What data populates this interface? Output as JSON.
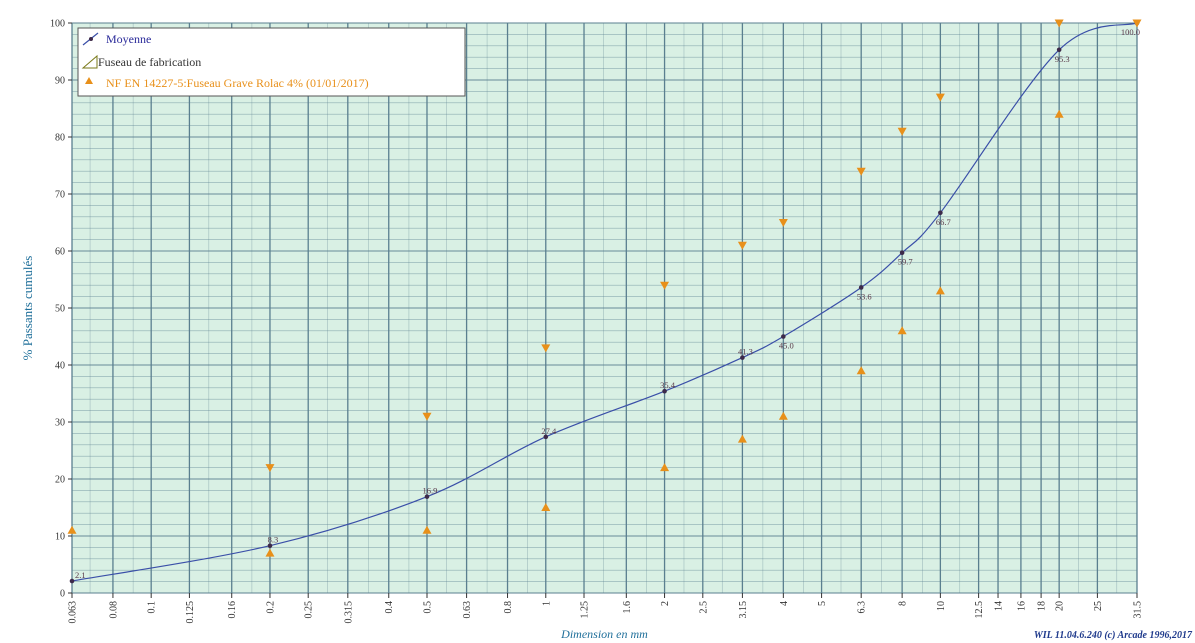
{
  "chart_data": {
    "type": "line",
    "ylabel": "% Passants cumulés",
    "xlabel": "Dimension en mm",
    "credit": "WIL 11.04.6.240 (c) Arcade 1996,2017",
    "ylim": [
      0,
      100
    ],
    "x_scale": "log",
    "xlim": [
      0.063,
      31.5
    ],
    "grid": true,
    "legend_position": "top-left",
    "y_ticks": [
      0,
      10,
      20,
      30,
      40,
      50,
      60,
      70,
      80,
      90,
      100
    ],
    "x_ticks": [
      "0.063",
      "0.08",
      "0.1",
      "0.125",
      "0.16",
      "0.2",
      "0.25",
      "0.315",
      "0.4",
      "0.5",
      "0.63",
      "0.8",
      "1",
      "1.25",
      "1.6",
      "2",
      "2.5",
      "3.15",
      "4",
      "5",
      "6.3",
      "8",
      "10",
      "12.5",
      "14",
      "16",
      "18",
      "20",
      "25",
      "31.5"
    ],
    "legend": [
      {
        "name": "Moyenne",
        "kind": "line"
      },
      {
        "name": "Fuseau de fabrication",
        "kind": "band"
      },
      {
        "name": "NF EN 14227-5:Fuseau Grave Rolac 4% (01/01/2017)",
        "kind": "triangle"
      }
    ],
    "series": [
      {
        "name": "Moyenne",
        "x": [
          0.063,
          0.2,
          0.5,
          1,
          2,
          3.15,
          4,
          6.3,
          8,
          10,
          20,
          31.5
        ],
        "y": [
          2.1,
          8.3,
          16.9,
          27.4,
          35.4,
          41.3,
          45.0,
          53.6,
          59.7,
          66.7,
          95.3,
          100.0
        ],
        "labels": [
          "2.1",
          "8.3",
          "16.9",
          "27.4",
          "35.4",
          "41.3",
          "45.0",
          "53.6",
          "59.7",
          "66.7",
          "95.3",
          "100.0"
        ]
      },
      {
        "name": "NF EN 14227-5:Fuseau Grave Rolac 4% (01/01/2017) - min",
        "x": [
          0.063,
          0.2,
          0.5,
          1,
          2,
          3.15,
          4,
          6.3,
          8,
          10,
          20
        ],
        "y": [
          11,
          7,
          11,
          15,
          22,
          27,
          31,
          39,
          46,
          53,
          84
        ]
      },
      {
        "name": "NF EN 14227-5:Fuseau Grave Rolac 4% (01/01/2017) - max",
        "x": [
          0.2,
          0.5,
          1,
          2,
          3.15,
          4,
          6.3,
          8,
          10,
          20,
          31.5
        ],
        "y": [
          22,
          31,
          43,
          54,
          61,
          65,
          74,
          81,
          87,
          100,
          100
        ]
      }
    ],
    "colors": {
      "background": "#d9f0e4",
      "grid": "#5a7f8f",
      "line": "#3a4fa8",
      "point": "#3d2a4a",
      "triangle": "#e8901a",
      "legend_border": "#555555",
      "legend_band": "#7a7a1a"
    }
  }
}
